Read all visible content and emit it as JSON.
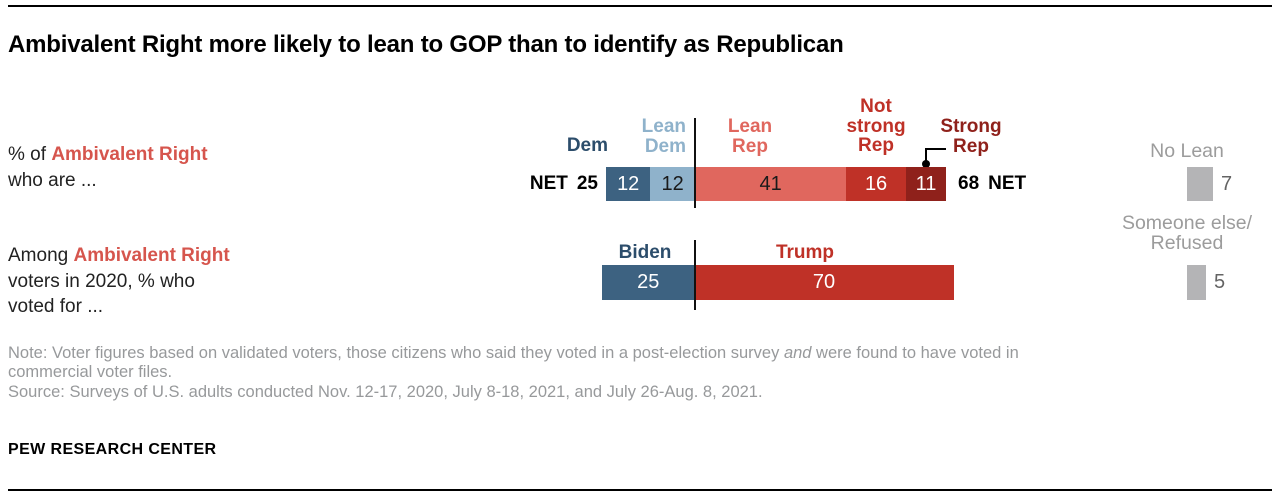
{
  "title": "Ambivalent Right more likely to lean to GOP than to identify as Republican",
  "rows": [
    {
      "prefix": "% of ",
      "highlight": "Ambivalent Right",
      "line2": "who are ..."
    },
    {
      "prefix": "Among ",
      "highlight": "Ambivalent Right",
      "line2": "voters in 2020, % who",
      "line3": "voted for ..."
    }
  ],
  "chart_data": [
    {
      "type": "bar",
      "stacked": true,
      "description": "% of Ambivalent Right who are ...",
      "net_left": {
        "label": "NET",
        "value": 25
      },
      "net_right": {
        "value": 68,
        "label": "NET"
      },
      "segments": [
        {
          "name": "Dem",
          "value": 12,
          "color": "#3d6281",
          "text_color": "#ffffff",
          "label_lines": [
            "Dem"
          ],
          "label_color": "#2c4d6b"
        },
        {
          "name": "Lean Dem",
          "value": 12,
          "color": "#8fb2cb",
          "text_color": "#1a1a1a",
          "label_lines": [
            "Lean",
            "Dem"
          ],
          "label_color": "#8fb2cb"
        },
        {
          "name": "Lean Rep",
          "value": 41,
          "color": "#e0675e",
          "text_color": "#1a1a1a",
          "label_lines": [
            "Lean",
            "Rep"
          ],
          "label_color": "#e0675e"
        },
        {
          "name": "Not strong Rep",
          "value": 16,
          "color": "#bf3127",
          "text_color": "#ffffff",
          "label_lines": [
            "Not",
            "strong",
            "Rep"
          ],
          "label_color": "#bf3127"
        },
        {
          "name": "Strong Rep",
          "value": 11,
          "color": "#8f211b",
          "text_color": "#ffffff",
          "label_lines": [
            "Strong",
            "Rep"
          ],
          "label_color": "#8f211b"
        }
      ]
    },
    {
      "type": "bar",
      "stacked": true,
      "description": "Among Ambivalent Right voters in 2020, % who voted for ...",
      "segments": [
        {
          "name": "Biden",
          "value": 25,
          "color": "#3d6281",
          "text_color": "#ffffff",
          "label_lines": [
            "Biden"
          ],
          "label_color": "#2c4d6b"
        },
        {
          "name": "Trump",
          "value": 70,
          "color": "#bf3127",
          "text_color": "#ffffff",
          "label_lines": [
            "Trump"
          ],
          "label_color": "#bf3127"
        }
      ]
    }
  ],
  "annotations": [
    {
      "label": "No Lean",
      "value": 7,
      "color": "#b4b4b6"
    },
    {
      "label": "Someone else/",
      "label2": "Refused",
      "value": 5,
      "color": "#b4b4b6"
    }
  ],
  "note": {
    "line1_part1": "Note: Voter figures based on validated voters, those citizens who said they voted in a post-election survey ",
    "line1_italic": "and",
    "line1_part2": " were found to have voted in",
    "line2": "commercial voter files.",
    "source": "Source: Surveys of U.S. adults conducted Nov. 12-17, 2020, July 8-18, 2021, and July 26-Aug. 8, 2021."
  },
  "footer": "PEW RESEARCH CENTER"
}
